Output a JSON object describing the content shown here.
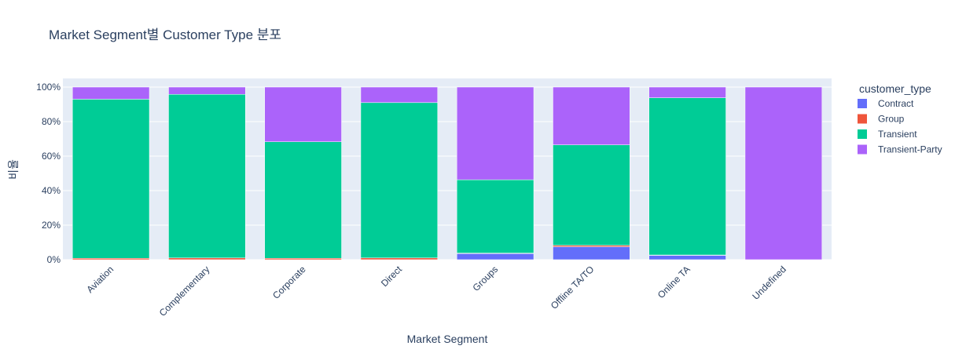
{
  "chart_data": {
    "type": "bar",
    "stacked": true,
    "title": "Market Segment별 Customer Type 분포",
    "xlabel": "Market Segment",
    "ylabel": "비율",
    "ylim": [
      0,
      1
    ],
    "y_tick_labels": [
      "0%",
      "20%",
      "40%",
      "60%",
      "80%",
      "100%"
    ],
    "y_ticks": [
      0,
      0.2,
      0.4,
      0.6,
      0.8,
      1.0
    ],
    "grid": true,
    "legend_title": "customer_type",
    "legend_position": "right",
    "categories": [
      "Aviation",
      "Complementary",
      "Corporate",
      "Direct",
      "Groups",
      "Offline TA/TO",
      "Online TA",
      "Undefined"
    ],
    "series": [
      {
        "name": "Contract",
        "color": "#636efa",
        "values": [
          0.0,
          0.0,
          0.0,
          0.0,
          0.035,
          0.075,
          0.025,
          0.0
        ]
      },
      {
        "name": "Group",
        "color": "#ef553b",
        "values": [
          0.008,
          0.01,
          0.008,
          0.01,
          0.003,
          0.008,
          0.002,
          0.0
        ]
      },
      {
        "name": "Transient",
        "color": "#00cc96",
        "values": [
          0.922,
          0.948,
          0.675,
          0.9,
          0.425,
          0.582,
          0.911,
          0.0
        ]
      },
      {
        "name": "Transient-Party",
        "color": "#ab63fa",
        "values": [
          0.07,
          0.042,
          0.317,
          0.09,
          0.537,
          0.335,
          0.062,
          1.0
        ]
      }
    ]
  }
}
